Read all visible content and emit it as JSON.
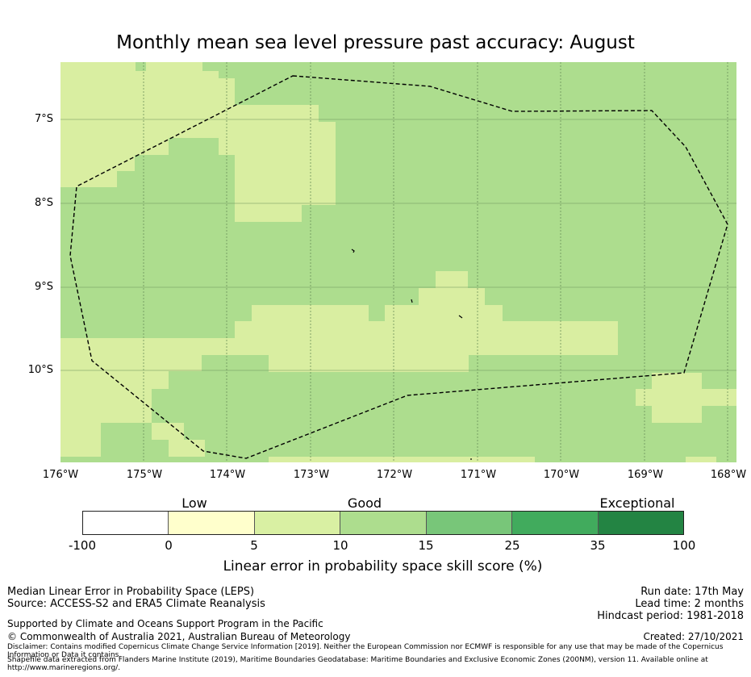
{
  "title": "Monthly mean sea level pressure past accuracy: August",
  "map": {
    "lat_labels": [
      "7°S",
      "8°S",
      "9°S",
      "10°S"
    ],
    "lon_labels": [
      "176°W",
      "175°W",
      "174°W",
      "173°W",
      "172°W",
      "171°W",
      "170°W",
      "169°W",
      "168°W"
    ],
    "colors": {
      "good_light": "#d9eea1",
      "good": "#addd8e",
      "eez_boundary": "#000000"
    }
  },
  "colorbar": {
    "categories": [
      "Low",
      "Good",
      "Exceptional"
    ],
    "ticks": [
      "-100",
      "0",
      "5",
      "10",
      "15",
      "25",
      "35",
      "100"
    ],
    "colors": [
      "#ffffff",
      "#ffffcc",
      "#d9f0a3",
      "#addd8e",
      "#78c679",
      "#41ab5d",
      "#238443"
    ],
    "label": "Linear error in probability space skill score (%)"
  },
  "footer": {
    "method": "Median Linear Error in Probability Space (LEPS)",
    "source": "Source: ACCESS-S2 and ERA5 Climate Reanalysis",
    "support": "Supported by Climate and Oceans Support Program in the Pacific",
    "copyright": "© Commonwealth of Australia 2021, Australian Bureau of Meteorology",
    "disclaimer": "Disclaimer: Contains modified Copernicus Climate Change Service Information [2019]. Neither the European Commission nor ECMWF is responsible for any use that may be made of the Copernicus Information or Data it contains.",
    "shapefile": "Shapefile data extracted from Flanders Marine Institute (2019), Maritime Boundaries Geodatabase: Maritime Boundaries and Exclusive Economic Zones (200NM), version 11. Available online at http://www.marineregions.org/.",
    "run_date": "Run date: 17th May",
    "lead_time": "Lead time: 2 months",
    "hindcast": "Hindcast period: 1981-2018",
    "created": "Created: 27/10/2021"
  }
}
